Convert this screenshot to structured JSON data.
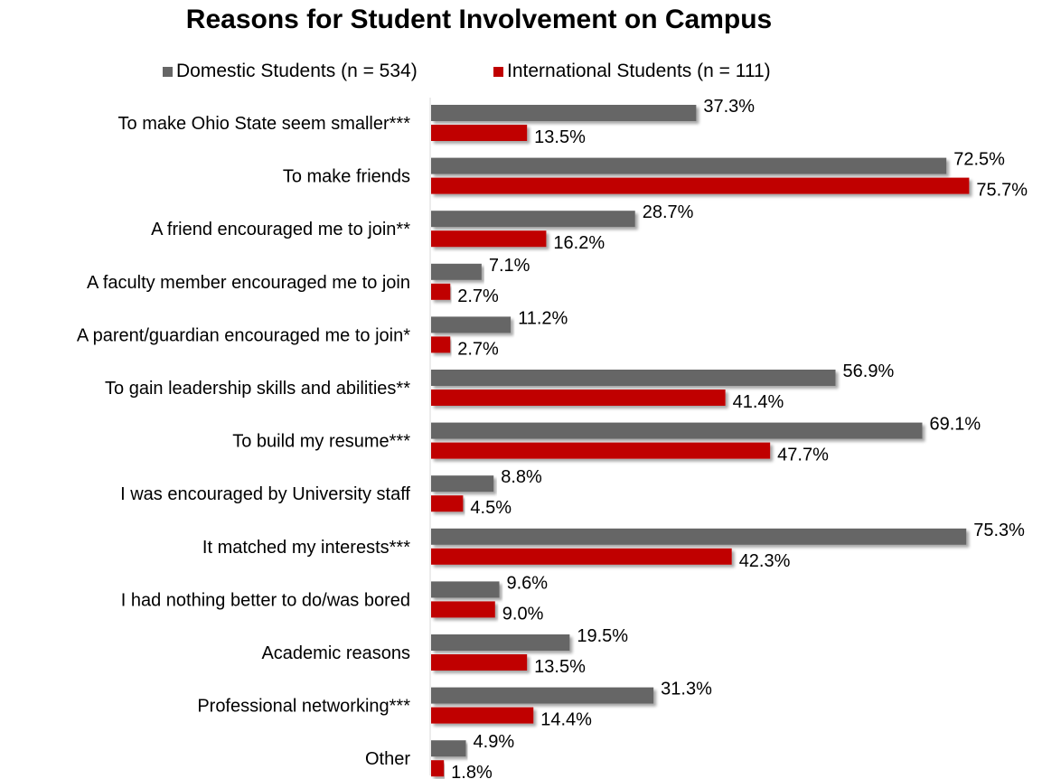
{
  "colors": {
    "domestic": "#666666",
    "international": "#c00000"
  },
  "chart_data": {
    "type": "bar",
    "orientation": "horizontal",
    "title": "Reasons for Student Involvement on Campus",
    "legend_position": "top",
    "grid": false,
    "xlim": [
      0,
      80
    ],
    "categories": [
      "To make Ohio State seem smaller***",
      "To make friends",
      "A friend encouraged me to join**",
      "A faculty member encouraged me to join",
      "A parent/guardian encouraged me to join*",
      "To gain leadership skills and abilities**",
      "To build my resume***",
      "I was encouraged by University staff",
      "It matched my interests***",
      "I had nothing better to do/was bored",
      "Academic reasons",
      "Professional networking***",
      "Other"
    ],
    "series": [
      {
        "name": "Domestic Students (n = 534)",
        "values": [
          37.3,
          72.5,
          28.7,
          7.1,
          11.2,
          56.9,
          69.1,
          8.8,
          75.3,
          9.6,
          19.5,
          31.3,
          4.9
        ],
        "labels": [
          "37.3%",
          "72.5%",
          "28.7%",
          "7.1%",
          "11.2%",
          "56.9%",
          "69.1%",
          "8.8%",
          "75.3%",
          "9.6%",
          "19.5%",
          "31.3%",
          "4.9%"
        ]
      },
      {
        "name": "International Students (n = 111)",
        "values": [
          13.5,
          75.7,
          16.2,
          2.7,
          2.7,
          41.4,
          47.7,
          4.5,
          42.3,
          9.0,
          13.5,
          14.4,
          1.8
        ],
        "labels": [
          "13.5%",
          "75.7%",
          "16.2%",
          "2.7%",
          "2.7%",
          "41.4%",
          "47.7%",
          "4.5%",
          "42.3%",
          "9.0%",
          "13.5%",
          "14.4%",
          "1.8%"
        ]
      }
    ]
  }
}
